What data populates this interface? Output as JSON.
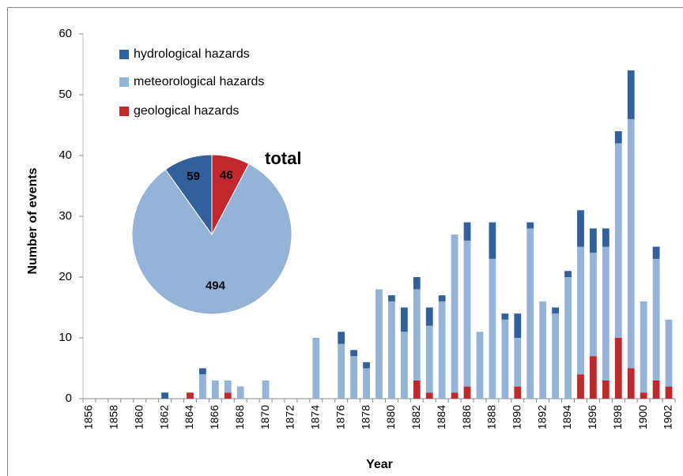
{
  "chart_data": [
    {
      "type": "bar",
      "stacked": true,
      "x_label": "Year",
      "y_label": "Number of events",
      "categories": [
        "1856",
        null,
        "1858",
        null,
        "1860",
        null,
        "1862",
        null,
        "1864",
        null,
        "1866",
        null,
        "1868",
        null,
        "1870",
        null,
        "1872",
        null,
        "1874",
        null,
        "1876",
        null,
        "1878",
        null,
        "1880",
        null,
        "1882",
        null,
        "1884",
        null,
        "1886",
        null,
        "1888",
        null,
        "1890",
        null,
        "1892",
        null,
        "1894",
        null,
        "1896",
        null,
        "1898",
        null,
        "1900",
        null,
        "1902"
      ],
      "series": [
        {
          "name": "geological hazards",
          "color": "#c0282d",
          "values": [
            0,
            0,
            0,
            0,
            0,
            0,
            0,
            0,
            1,
            0,
            0,
            1,
            0,
            0,
            0,
            0,
            0,
            0,
            0,
            0,
            0,
            0,
            0,
            0,
            0,
            0,
            3,
            1,
            0,
            1,
            2,
            0,
            0,
            0,
            2,
            0,
            0,
            0,
            0,
            4,
            7,
            3,
            10,
            5,
            1,
            3,
            2
          ]
        },
        {
          "name": "meteorological hazards",
          "color": "#95b3d7",
          "values": [
            0,
            0,
            0,
            0,
            0,
            0,
            0,
            0,
            0,
            4,
            3,
            2,
            2,
            0,
            3,
            0,
            0,
            0,
            10,
            0,
            9,
            7,
            5,
            18,
            16,
            11,
            15,
            11,
            16,
            26,
            24,
            11,
            23,
            13,
            8,
            28,
            16,
            14,
            20,
            21,
            17,
            22,
            32,
            41,
            15,
            20,
            11
          ]
        },
        {
          "name": "hydrological hazards",
          "color": "#31609a",
          "values": [
            0,
            0,
            0,
            0,
            0,
            0,
            1,
            0,
            0,
            1,
            0,
            0,
            0,
            0,
            0,
            0,
            0,
            0,
            0,
            0,
            2,
            1,
            1,
            0,
            1,
            4,
            2,
            3,
            1,
            0,
            3,
            0,
            6,
            1,
            4,
            1,
            0,
            1,
            1,
            6,
            4,
            3,
            2,
            8,
            0,
            2,
            0
          ]
        }
      ],
      "ylim": [
        0,
        60
      ],
      "yticks": [
        0,
        10,
        20,
        30,
        40,
        50,
        60
      ],
      "grid": false
    },
    {
      "type": "pie",
      "title": "total",
      "values": [
        46,
        494,
        59
      ],
      "colors": [
        "#c0282d",
        "#95b3d7",
        "#31609a"
      ]
    }
  ]
}
